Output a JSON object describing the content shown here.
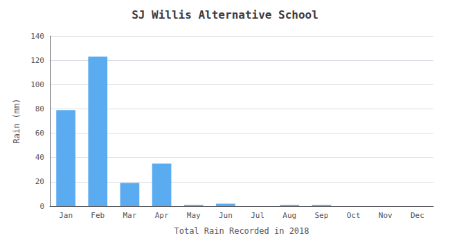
{
  "chart_data": {
    "type": "bar",
    "title": "SJ Willis Alternative School",
    "xlabel": "Total Rain Recorded in 2018",
    "ylabel": "Rain (mm)",
    "categories": [
      "Jan",
      "Feb",
      "Mar",
      "Apr",
      "May",
      "Jun",
      "Jul",
      "Aug",
      "Sep",
      "Oct",
      "Nov",
      "Dec"
    ],
    "values": [
      79,
      123,
      19,
      35,
      1,
      2,
      0,
      1,
      1,
      0,
      0,
      0
    ],
    "color": "#5aabf0",
    "ylim": [
      0,
      140
    ],
    "yticks": [
      0,
      20,
      40,
      60,
      80,
      100,
      120,
      140
    ],
    "grid": true
  }
}
